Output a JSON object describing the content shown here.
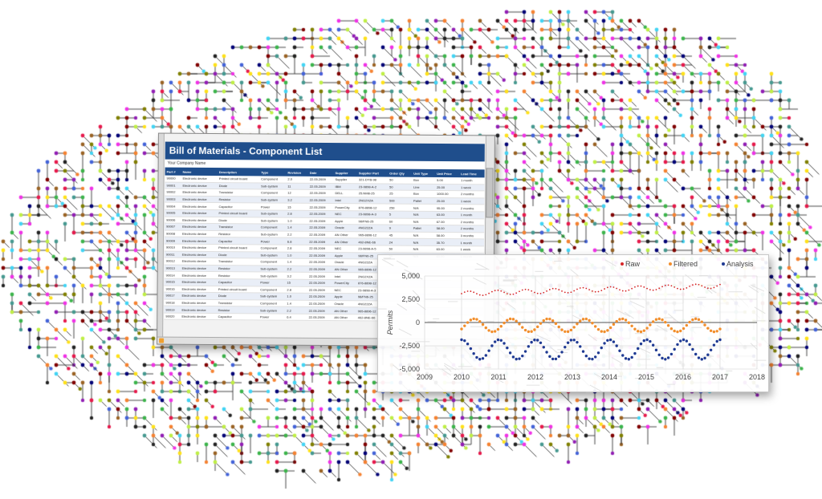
{
  "background": {
    "description_icon": "circuit-brain-icon",
    "colors": [
      "#e6194b",
      "#3cb44b",
      "#4363d8",
      "#f58231",
      "#911eb4",
      "#42d4f4",
      "#f032e6",
      "#bfef45",
      "#222222",
      "#9a6324",
      "#800000",
      "#000075",
      "#ffe119",
      "#469990",
      "#808000"
    ]
  },
  "spreadsheet": {
    "title": "Bill of Materials - Component List",
    "company": "Your Company Name",
    "columns": [
      "Part #",
      "Name",
      "Description",
      "Type",
      "Revision",
      "Date",
      "Supplier",
      "Supplier Part",
      "Order Qty",
      "Unit Type",
      "Unit Price",
      "Lead Time"
    ],
    "rows": [
      [
        "90000",
        "Electronic device",
        "Printed circuit board",
        "Component",
        "2.0",
        "22.05.2009",
        "Supplier",
        "321-DYB-98",
        "50",
        "Box",
        "5.00",
        "1 month"
      ],
      [
        "90001",
        "Electronic device",
        "Diode",
        "Sub-system",
        "11",
        "22.05.2009",
        "IBM",
        "23-9898-A-2",
        "50",
        "Line",
        "25.00",
        "1 week"
      ],
      [
        "90002",
        "Electronic device",
        "Transistor",
        "Component",
        "12",
        "22.05.2009",
        "DELL",
        "25.NM8-25",
        "25",
        "Box",
        "1000.00",
        "2 months"
      ],
      [
        "90003",
        "Electronic device",
        "Resistor",
        "Sub-system",
        "3.2",
        "22.05.2009",
        "Intel",
        "2NG2XZA",
        "500",
        "Pallet",
        "25.00",
        "1 week"
      ],
      [
        "90004",
        "Electronic device",
        "Capacitor",
        "Power",
        "15",
        "22.05.2009",
        "PowerCity",
        "876-8898-12",
        "250",
        "N/A",
        "95.00",
        "2 months"
      ],
      [
        "90005",
        "Electronic device",
        "Printed circuit board",
        "Sub-system",
        "2.8",
        "22.05.2009",
        "NEC",
        "23-9898-A-3",
        "5",
        "N/A",
        "63.00",
        "1 month"
      ],
      [
        "90006",
        "Electronic device",
        "Diode",
        "Sub-system",
        "1.0",
        "22.05.2009",
        "Apple",
        "98/FN6-25",
        "60",
        "N/A",
        "67.00",
        "2 months"
      ],
      [
        "90007",
        "Electronic device",
        "Transistor",
        "Component",
        "1.4",
        "22.05.2009",
        "Oracle",
        "4NG22ZA",
        "9",
        "Pallet",
        "58.00",
        "2 months"
      ],
      [
        "90008",
        "Electronic device",
        "Resistor",
        "Sub-system",
        "2.2",
        "22.05.2009",
        "AN Other",
        "965-8896-12",
        "45",
        "N/A",
        "58.00",
        "3 months"
      ],
      [
        "90009",
        "Electronic device",
        "Capacitor",
        "Power",
        "6.8",
        "22.05.2009",
        "AN Other",
        "462-8NE-66",
        "24",
        "N/A",
        "35.70",
        "1 month"
      ],
      [
        "90010",
        "Electronic device",
        "Printed circuit board",
        "Component",
        "2.8",
        "22.05.2009",
        "NEC",
        "23-9898-A-5",
        "50",
        "N/A",
        "63.00",
        "1 week"
      ],
      [
        "90011",
        "Electronic device",
        "Diode",
        "Sub-system",
        "1.0",
        "22.05.2009",
        "Apple",
        "98/FN6-25",
        "50",
        "N/A",
        "63.00",
        "1 month"
      ],
      [
        "90012",
        "Electronic device",
        "Transistor",
        "Component",
        "1.4",
        "22.05.2009",
        "Oracle",
        "4NG22ZA",
        "",
        "",
        "",
        ""
      ],
      [
        "90013",
        "Electronic device",
        "Resistor",
        "Sub-system",
        "2.2",
        "22.05.2009",
        "AN Other",
        "965-8896-12",
        "",
        "",
        "",
        ""
      ],
      [
        "90014",
        "Electronic device",
        "Resistor",
        "Sub-system",
        "3.2",
        "22.05.2009",
        "Intel",
        "2NG2XZA",
        "",
        "",
        "",
        ""
      ],
      [
        "90015",
        "Electronic device",
        "Capacitor",
        "Power",
        "15",
        "22.05.2009",
        "PowerCity",
        "876-8898-12",
        "",
        "",
        "",
        ""
      ],
      [
        "90016",
        "Electronic device",
        "Printed circuit board",
        "Component",
        "2.8",
        "22.05.2009",
        "NEC",
        "23-9898-A-3",
        "",
        "",
        "",
        ""
      ],
      [
        "90017",
        "Electronic device",
        "Diode",
        "Sub-system",
        "1.0",
        "22.05.2009",
        "Apple",
        "98/FN6-25",
        "",
        "",
        "",
        ""
      ],
      [
        "90018",
        "Electronic device",
        "Transistor",
        "Component",
        "1.4",
        "22.05.2009",
        "Oracle",
        "4NG22ZA",
        "",
        "",
        "",
        ""
      ],
      [
        "90019",
        "Electronic device",
        "Resistor",
        "Sub-system",
        "2.2",
        "22.05.2009",
        "AN Other",
        "965-8896-12",
        "",
        "",
        "",
        ""
      ],
      [
        "90020",
        "Electronic device",
        "Capacitor",
        "Power",
        "6.4",
        "22.05.2009",
        "AN Other",
        "462-8NE-66",
        "",
        "",
        "",
        ""
      ]
    ]
  },
  "chart_data": {
    "type": "scatter",
    "title": "",
    "xlabel": "",
    "ylabel": "Permits",
    "xlim": [
      2009,
      2018
    ],
    "ylim": [
      -5000,
      5000
    ],
    "xticks": [
      "2009",
      "2010",
      "2011",
      "2012",
      "2013",
      "2014",
      "2015",
      "2016",
      "2017",
      "2018"
    ],
    "yticks": [
      "5,000",
      "2,500",
      "0",
      "-2,500",
      "-5,000"
    ],
    "ytick_values": [
      5000,
      2500,
      0,
      -2500,
      -5000
    ],
    "grid": true,
    "legend_placement": "top-right",
    "series": [
      {
        "name": "Raw",
        "color": "#d62728",
        "x_start": 2010,
        "x_end": 2017,
        "n": 86,
        "model": "raw"
      },
      {
        "name": "Filtered",
        "color": "#f28e2b",
        "x_start": 2010,
        "x_end": 2017,
        "n": 86,
        "model": "filtered"
      },
      {
        "name": "Analysis",
        "color": "#1f3a93",
        "x_start": 2010,
        "x_end": 2017,
        "n": 86,
        "model": "analysis"
      }
    ]
  }
}
